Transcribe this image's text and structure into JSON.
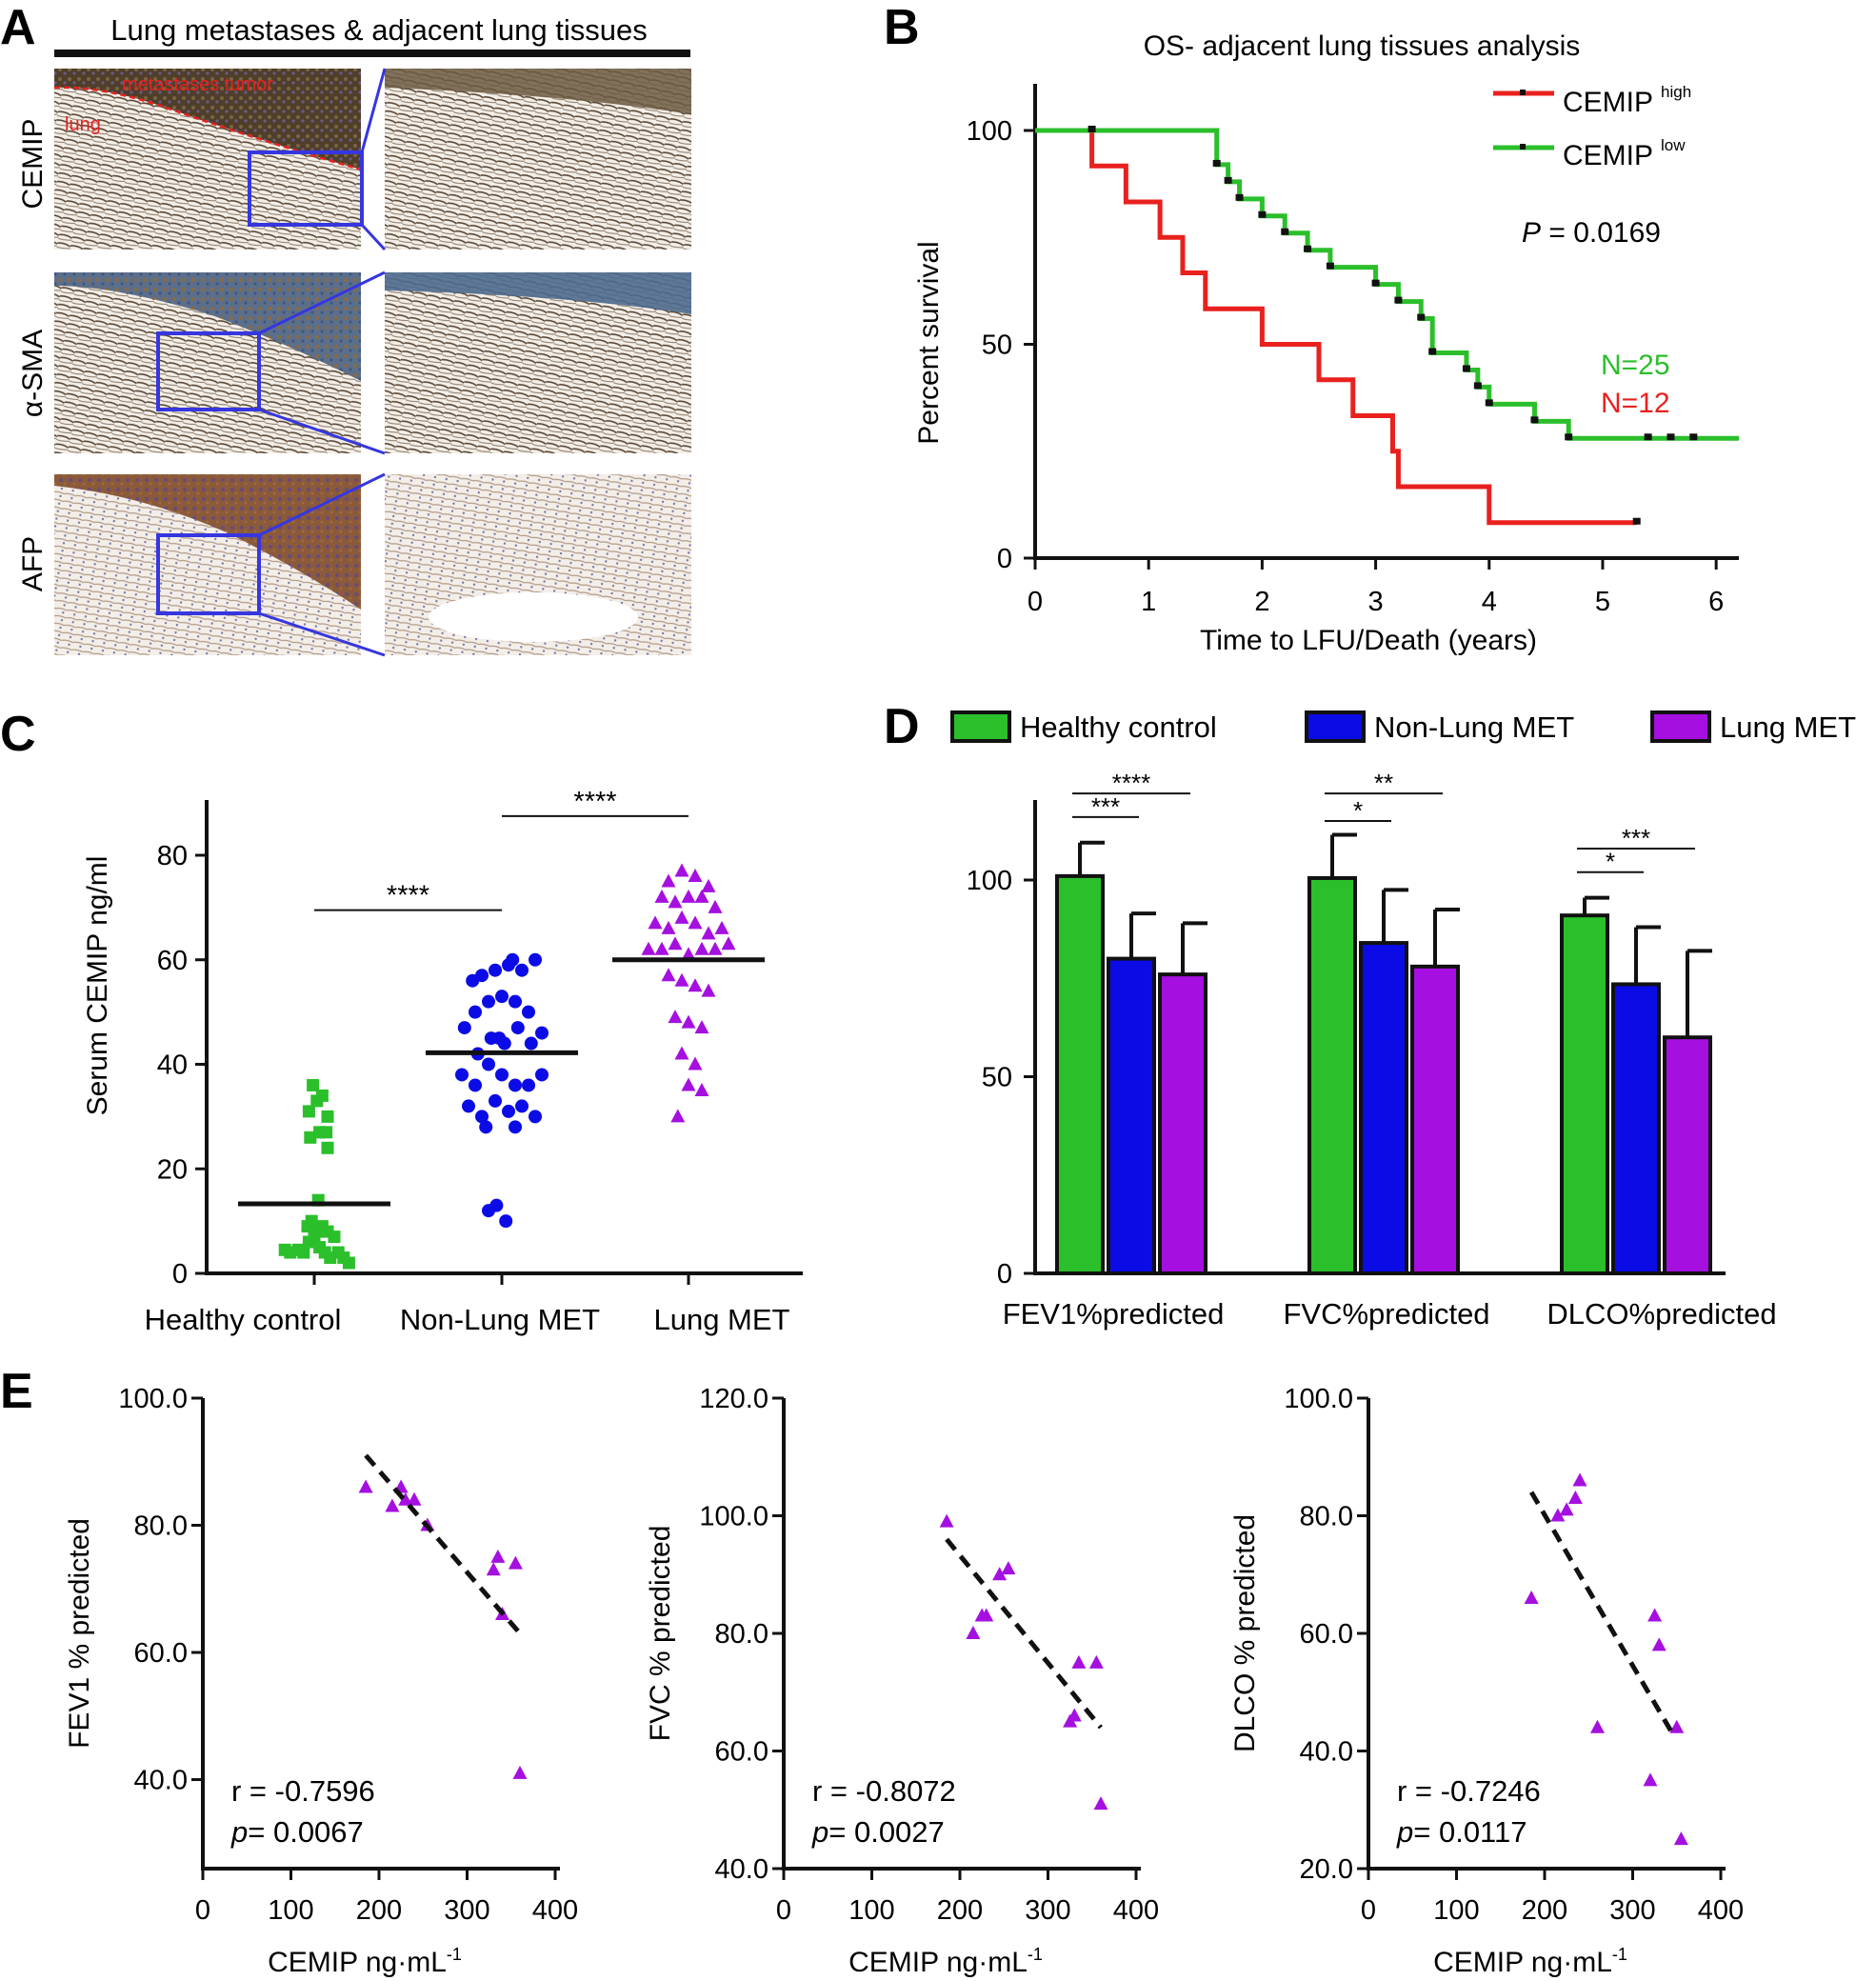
{
  "panel_letters": [
    "A",
    "B",
    "C",
    "D",
    "E"
  ],
  "panel_a": {
    "header": "Lung metastases & adjacent lung tissues",
    "row_labels": [
      "CEMIP",
      "α-SMA",
      "AFP"
    ],
    "overlay_labels": [
      "metastases tumor",
      "lung"
    ]
  },
  "colors": {
    "red": "#e8211f",
    "green": "#2bbf2b",
    "blue": "#0b0be6",
    "purple": "#a50fe0",
    "box": "#3636e0"
  },
  "chart_data": [
    {
      "id": "B",
      "type": "line",
      "title": "OS- adjacent lung tissues analysis",
      "xlabel": "Time to LFU/Death (years)",
      "ylabel": "Percent survival",
      "xlim": [
        0,
        6.2
      ],
      "ylim": [
        0,
        110
      ],
      "xticks": [
        0,
        1,
        2,
        3,
        4,
        5,
        6
      ],
      "yticks": [
        0,
        50,
        100
      ],
      "legend": [
        {
          "name": "CEMIP",
          "sup": "high",
          "color": "#e8211f"
        },
        {
          "name": "CEMIP",
          "sup": "low",
          "color": "#2bbf2b"
        }
      ],
      "pvalue_label": "P",
      "pvalue_text": " = 0.0169",
      "n_labels": [
        {
          "text": "N=25",
          "color": "#2bbf2b"
        },
        {
          "text": "N=12",
          "color": "#e8211f"
        }
      ],
      "series": [
        {
          "name": "CEMIP high",
          "color": "#e8211f",
          "steps": [
            [
              0,
              100
            ],
            [
              0.5,
              91.7
            ],
            [
              0.8,
              83.3
            ],
            [
              1.1,
              75
            ],
            [
              1.3,
              66.7
            ],
            [
              1.5,
              58.3
            ],
            [
              2.0,
              50
            ],
            [
              2.5,
              41.7
            ],
            [
              2.8,
              33.3
            ],
            [
              3.15,
              25
            ],
            [
              3.2,
              16.7
            ],
            [
              4.0,
              8.3
            ]
          ],
          "end": 5.3,
          "censors": [
            [
              5.3,
              8.3
            ]
          ]
        },
        {
          "name": "CEMIP low",
          "color": "#2bbf2b",
          "steps": [
            [
              0,
              100
            ],
            [
              1.6,
              92
            ],
            [
              1.7,
              88
            ],
            [
              1.8,
              84
            ],
            [
              2.0,
              80
            ],
            [
              2.2,
              76
            ],
            [
              2.4,
              72
            ],
            [
              2.6,
              68
            ],
            [
              3.0,
              64
            ],
            [
              3.2,
              60
            ],
            [
              3.4,
              56
            ],
            [
              3.5,
              48
            ],
            [
              3.8,
              44
            ],
            [
              3.9,
              40
            ],
            [
              4.0,
              36
            ],
            [
              4.4,
              32
            ],
            [
              4.7,
              28
            ]
          ],
          "end": 6.2,
          "censors": [
            [
              0.5,
              100
            ],
            [
              1.6,
              92
            ],
            [
              1.7,
              88
            ],
            [
              1.8,
              84
            ],
            [
              2.0,
              80
            ],
            [
              2.2,
              76
            ],
            [
              2.4,
              72
            ],
            [
              2.6,
              68
            ],
            [
              3.0,
              64
            ],
            [
              3.2,
              60
            ],
            [
              3.4,
              56
            ],
            [
              3.5,
              48
            ],
            [
              3.8,
              44
            ],
            [
              3.9,
              40
            ],
            [
              4.0,
              36
            ],
            [
              4.4,
              32
            ],
            [
              4.7,
              28
            ],
            [
              5.4,
              28
            ],
            [
              5.6,
              28
            ],
            [
              5.8,
              28
            ]
          ]
        }
      ]
    },
    {
      "id": "C",
      "type": "scatter",
      "ylabel": "Serum CEMIP ng/ml",
      "ylim": [
        0,
        90
      ],
      "yticks": [
        0,
        20,
        40,
        60,
        80
      ],
      "categories": [
        "Healthy control",
        "Non-Lung MET",
        "Lung MET"
      ],
      "significance": [
        {
          "from": 0,
          "to": 1,
          "label": "****",
          "y": 69.5
        },
        {
          "from": 1,
          "to": 2,
          "label": "****",
          "y": 87.5
        }
      ],
      "series": [
        {
          "name": "Healthy control",
          "color": "#2bbf2b",
          "marker": "square",
          "mean": 13.3,
          "points": [
            [
              -0.22,
              4.5
            ],
            [
              -0.18,
              4
            ],
            [
              -0.12,
              4.5
            ],
            [
              -0.08,
              4
            ],
            [
              -0.04,
              6
            ],
            [
              0.0,
              7
            ],
            [
              0.04,
              5
            ],
            [
              0.08,
              4
            ],
            [
              0.12,
              3
            ],
            [
              0.18,
              4
            ],
            [
              0.22,
              3
            ],
            [
              0.26,
              2
            ],
            [
              -0.05,
              9
            ],
            [
              0.02,
              8
            ],
            [
              0.06,
              9
            ],
            [
              0.1,
              8
            ],
            [
              0.15,
              7
            ],
            [
              -0.02,
              10
            ],
            [
              0.03,
              14
            ],
            [
              -0.03,
              26
            ],
            [
              0.04,
              27
            ],
            [
              0.1,
              30
            ],
            [
              -0.04,
              31
            ],
            [
              0.09,
              27
            ],
            [
              0.02,
              33
            ],
            [
              -0.01,
              36
            ],
            [
              0.06,
              34
            ],
            [
              0.1,
              24
            ]
          ]
        },
        {
          "name": "Non-Lung MET",
          "color": "#0b0be6",
          "marker": "circle",
          "mean": 42.2,
          "points": [
            [
              -0.3,
              38
            ],
            [
              -0.2,
              36
            ],
            [
              -0.1,
              40
            ],
            [
              0.0,
              38
            ],
            [
              0.1,
              36
            ],
            [
              0.2,
              36
            ],
            [
              0.3,
              38
            ],
            [
              -0.25,
              32
            ],
            [
              -0.15,
              30
            ],
            [
              -0.05,
              33
            ],
            [
              0.05,
              31
            ],
            [
              0.15,
              32
            ],
            [
              0.25,
              30
            ],
            [
              -0.18,
              42
            ],
            [
              -0.08,
              45
            ],
            [
              0.02,
              44
            ],
            [
              0.12,
              47
            ],
            [
              0.22,
              44
            ],
            [
              -0.2,
              50
            ],
            [
              -0.1,
              52
            ],
            [
              0.0,
              53
            ],
            [
              0.1,
              52
            ],
            [
              0.2,
              50
            ],
            [
              -0.15,
              57
            ],
            [
              -0.05,
              58
            ],
            [
              0.05,
              59
            ],
            [
              0.15,
              58
            ],
            [
              0.25,
              60
            ],
            [
              -0.22,
              56
            ],
            [
              0.08,
              60
            ],
            [
              -0.02,
              45
            ],
            [
              0.3,
              46
            ],
            [
              -0.28,
              47
            ],
            [
              -0.12,
              28
            ],
            [
              0.1,
              28
            ],
            [
              -0.04,
              13
            ],
            [
              0.03,
              10
            ],
            [
              -0.1,
              12
            ]
          ]
        },
        {
          "name": "Lung MET",
          "color": "#a50fe0",
          "marker": "triangle",
          "mean": 60,
          "points": [
            [
              -0.15,
              75
            ],
            [
              -0.05,
              77
            ],
            [
              0.05,
              76
            ],
            [
              0.15,
              74
            ],
            [
              -0.2,
              72
            ],
            [
              -0.1,
              71
            ],
            [
              0.0,
              72
            ],
            [
              0.1,
              72
            ],
            [
              0.2,
              70
            ],
            [
              -0.25,
              67
            ],
            [
              -0.15,
              66
            ],
            [
              -0.05,
              68
            ],
            [
              0.05,
              67
            ],
            [
              0.15,
              65
            ],
            [
              0.25,
              66
            ],
            [
              -0.3,
              62
            ],
            [
              -0.2,
              62
            ],
            [
              -0.1,
              63
            ],
            [
              0.0,
              61
            ],
            [
              0.1,
              62
            ],
            [
              0.2,
              62
            ],
            [
              0.3,
              63
            ],
            [
              -0.15,
              57
            ],
            [
              -0.05,
              56
            ],
            [
              0.05,
              55
            ],
            [
              0.15,
              54
            ],
            [
              -0.1,
              49
            ],
            [
              0.0,
              48
            ],
            [
              0.1,
              47
            ],
            [
              -0.05,
              42
            ],
            [
              0.05,
              40
            ],
            [
              0.0,
              36
            ],
            [
              0.1,
              35
            ],
            [
              -0.08,
              30
            ]
          ]
        }
      ]
    },
    {
      "id": "D",
      "type": "bar",
      "ylim": [
        0,
        120
      ],
      "yticks": [
        0,
        50,
        100
      ],
      "categories": [
        "FEV1%predicted",
        "FVC%predicted",
        "DLCO%predicted"
      ],
      "legend": [
        "Healthy control",
        "Non-Lung MET",
        "Lung MET"
      ],
      "series": [
        {
          "name": "Healthy control",
          "color": "#2bbf2b",
          "values": [
            101,
            100.5,
            91
          ],
          "errors": [
            8.5,
            11,
            4.5
          ]
        },
        {
          "name": "Non-Lung MET",
          "color": "#0b0be6",
          "values": [
            80,
            84,
            73.5
          ],
          "errors": [
            11.5,
            13.5,
            14.5
          ]
        },
        {
          "name": "Lung MET",
          "color": "#a50fe0",
          "values": [
            76,
            78,
            60
          ],
          "errors": [
            13,
            14.5,
            22
          ]
        }
      ],
      "significance": [
        {
          "group": 0,
          "from": 0,
          "to": 1,
          "label": "***",
          "y": 116
        },
        {
          "group": 0,
          "from": 0,
          "to": 2,
          "label": "****",
          "y": 122
        },
        {
          "group": 1,
          "from": 0,
          "to": 1,
          "label": "*",
          "y": 115
        },
        {
          "group": 1,
          "from": 0,
          "to": 2,
          "label": "**",
          "y": 122
        },
        {
          "group": 2,
          "from": 0,
          "to": 1,
          "label": "*",
          "y": 102
        },
        {
          "group": 2,
          "from": 0,
          "to": 2,
          "label": "***",
          "y": 108
        }
      ]
    },
    {
      "id": "E1",
      "type": "scatter",
      "xlabel": "CEMIP ng·mL",
      "xlabel_sup": "-1",
      "ylabel": "FEV1 %  predicted",
      "xlim": [
        0,
        400
      ],
      "ylim": [
        26,
        100
      ],
      "xticks": [
        0,
        100,
        200,
        300,
        400
      ],
      "yticks": [
        40,
        60,
        80,
        100
      ],
      "ytick_labels": [
        "40.0",
        "60.0",
        "80.0",
        "100.0"
      ],
      "points": [
        [
          185,
          86
        ],
        [
          215,
          83
        ],
        [
          225,
          86
        ],
        [
          230,
          84
        ],
        [
          240,
          84
        ],
        [
          255,
          80
        ],
        [
          330,
          73
        ],
        [
          335,
          75
        ],
        [
          340,
          66
        ],
        [
          355,
          74
        ],
        [
          360,
          41
        ]
      ],
      "fit": [
        [
          185,
          91
        ],
        [
          360,
          63
        ]
      ],
      "r_text": "r = -0.7596",
      "p_label": "p",
      "p_text": "= 0.0067"
    },
    {
      "id": "E2",
      "type": "scatter",
      "xlabel": "CEMIP ng·mL",
      "xlabel_sup": "-1",
      "ylabel": "FVC %  predicted",
      "xlim": [
        0,
        400
      ],
      "ylim": [
        40,
        120
      ],
      "xticks": [
        0,
        100,
        200,
        300,
        400
      ],
      "yticks": [
        40,
        60,
        80,
        100,
        120
      ],
      "ytick_labels": [
        "40.0",
        "60.0",
        "80.0",
        "100.0",
        "120.0"
      ],
      "points": [
        [
          185,
          99
        ],
        [
          215,
          80
        ],
        [
          225,
          83
        ],
        [
          230,
          83
        ],
        [
          245,
          90
        ],
        [
          255,
          91
        ],
        [
          325,
          65
        ],
        [
          330,
          66
        ],
        [
          335,
          75
        ],
        [
          355,
          75
        ],
        [
          360,
          51
        ]
      ],
      "fit": [
        [
          185,
          96
        ],
        [
          360,
          64
        ]
      ],
      "r_text": "r = -0.8072",
      "p_label": "p",
      "p_text": "= 0.0027"
    },
    {
      "id": "E3",
      "type": "scatter",
      "xlabel": "CEMIP ng·mL",
      "xlabel_sup": "-1",
      "ylabel": "DLCO %  predicted",
      "xlim": [
        0,
        400
      ],
      "ylim": [
        20,
        100
      ],
      "xticks": [
        0,
        100,
        200,
        300,
        400
      ],
      "yticks": [
        20,
        40,
        60,
        80,
        100
      ],
      "ytick_labels": [
        "20.0",
        "40.0",
        "60.0",
        "80.0",
        "100.0"
      ],
      "points": [
        [
          185,
          66
        ],
        [
          215,
          80
        ],
        [
          225,
          81
        ],
        [
          235,
          83
        ],
        [
          240,
          86
        ],
        [
          260,
          44
        ],
        [
          320,
          35
        ],
        [
          325,
          63
        ],
        [
          330,
          58
        ],
        [
          350,
          44
        ],
        [
          355,
          25
        ]
      ],
      "fit": [
        [
          185,
          84
        ],
        [
          345,
          43
        ]
      ],
      "r_text": "r = -0.7246",
      "p_label": "p",
      "p_text": "= 0.0117"
    }
  ]
}
